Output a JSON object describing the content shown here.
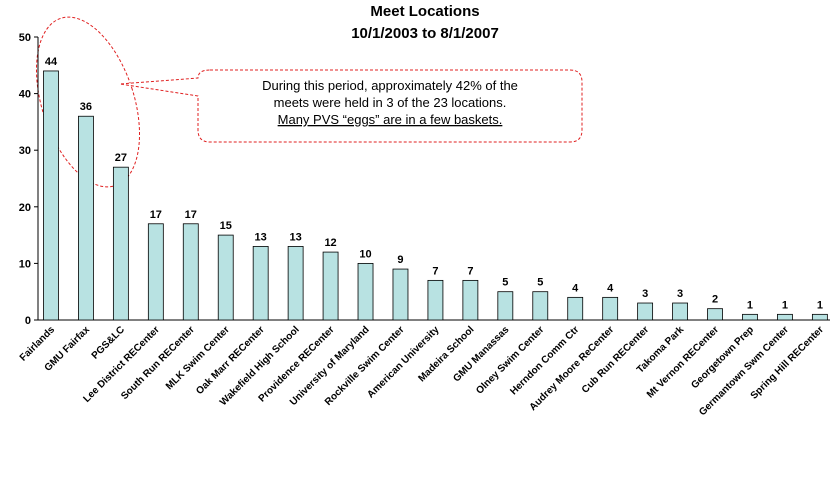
{
  "chart_data": {
    "type": "bar",
    "title": "Meet Locations",
    "subtitle": "10/1/2003 to 8/1/2007",
    "categories": [
      "Fairlands",
      "GMU Fairfax",
      "PGS&LC",
      "Lee District RECenter",
      "South Run RECenter",
      "MLK Swim Center",
      "Oak Marr RECenter",
      "Wakefield High School",
      "Providence RECenter",
      "University of Maryland",
      "Rockville Swim Center",
      "American University",
      "Madeira School",
      "GMU Manassas",
      "Olney Swim Center",
      "Herndon Comm Ctr",
      "Audrey Moore ReCenter",
      "Cub Run RECenter",
      "Takoma Park",
      "Mt Vernon RECenter",
      "Georgetown Prep",
      "Germantown Swm Center",
      "Spring Hill RECenter"
    ],
    "values": [
      44,
      36,
      27,
      17,
      17,
      15,
      13,
      13,
      12,
      10,
      9,
      7,
      7,
      5,
      5,
      4,
      4,
      3,
      3,
      2,
      1,
      1,
      1
    ],
    "color": "#b8e2e2",
    "ylim": [
      0,
      50
    ],
    "yticks": [
      0,
      10,
      20,
      30,
      40,
      50
    ],
    "grid": false,
    "annotation": [
      "During this period, approximately 42% of the",
      "meets were held in 3 of the 23 locations.",
      "Many PVS “eggs” are in a few baskets."
    ]
  }
}
